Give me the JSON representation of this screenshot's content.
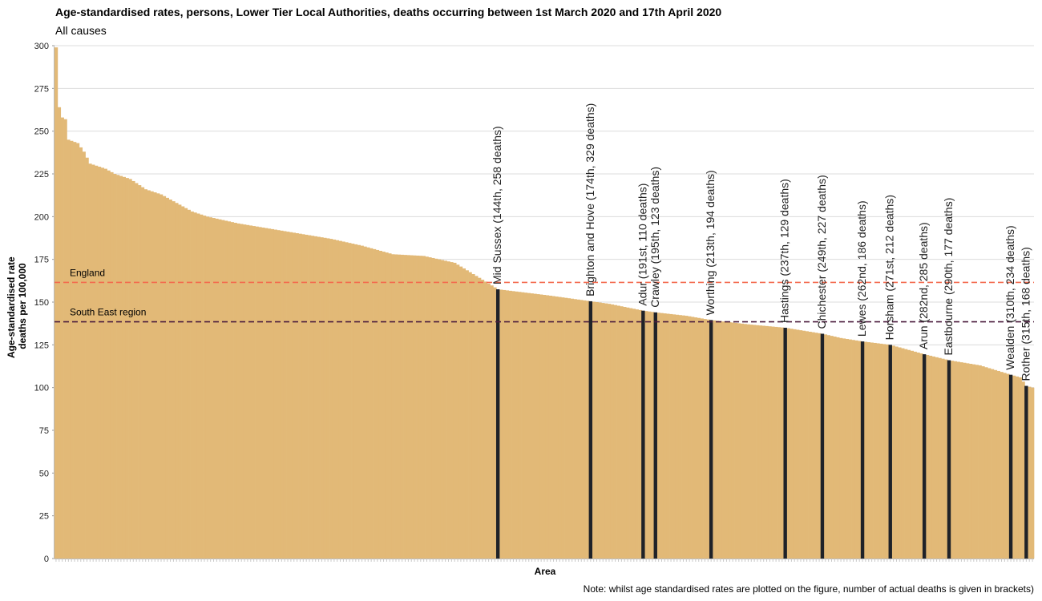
{
  "chart_data": {
    "type": "bar",
    "title": "Age-standardised rates, persons, Lower Tier Local Authorities, deaths occurring between 1st March 2020 and 17th April 2020",
    "subtitle": "All causes",
    "xlabel": "Area",
    "ylabel_lines": [
      "Age-standardised rate",
      "deaths per 100,000"
    ],
    "note": "Note: whilst age standardised rates are plotted on the figure, number of actual deaths is given in brackets)",
    "ylim": [
      0,
      300
    ],
    "yticks": [
      "0",
      "25",
      "50",
      "75",
      "100",
      "125",
      "150",
      "175",
      "200",
      "225",
      "250",
      "275",
      "300"
    ],
    "grid": true,
    "n_areas": 317,
    "bar_color": "#e2b977",
    "highlight_color": "#1f2228",
    "ranked_profile": [
      {
        "rank": 1,
        "value": 299
      },
      {
        "rank": 2,
        "value": 264
      },
      {
        "rank": 3,
        "value": 258
      },
      {
        "rank": 4,
        "value": 257
      },
      {
        "rank": 5,
        "value": 245
      },
      {
        "rank": 8,
        "value": 243
      },
      {
        "rank": 10,
        "value": 238
      },
      {
        "rank": 12,
        "value": 231
      },
      {
        "rank": 17,
        "value": 228
      },
      {
        "rank": 20,
        "value": 225
      },
      {
        "rank": 25,
        "value": 222
      },
      {
        "rank": 30,
        "value": 216
      },
      {
        "rank": 35,
        "value": 213
      },
      {
        "rank": 40,
        "value": 208
      },
      {
        "rank": 45,
        "value": 203
      },
      {
        "rank": 50,
        "value": 200
      },
      {
        "rank": 55,
        "value": 198
      },
      {
        "rank": 60,
        "value": 196
      },
      {
        "rank": 70,
        "value": 193
      },
      {
        "rank": 80,
        "value": 190
      },
      {
        "rank": 90,
        "value": 187
      },
      {
        "rank": 100,
        "value": 183
      },
      {
        "rank": 110,
        "value": 178
      },
      {
        "rank": 120,
        "value": 177
      },
      {
        "rank": 130,
        "value": 173
      },
      {
        "rank": 140,
        "value": 162
      },
      {
        "rank": 144,
        "value": 157.5
      },
      {
        "rank": 160,
        "value": 154
      },
      {
        "rank": 174,
        "value": 150.5
      },
      {
        "rank": 180,
        "value": 149
      },
      {
        "rank": 191,
        "value": 145
      },
      {
        "rank": 195,
        "value": 144
      },
      {
        "rank": 205,
        "value": 142
      },
      {
        "rank": 213,
        "value": 139.5
      },
      {
        "rank": 225,
        "value": 137
      },
      {
        "rank": 237,
        "value": 135
      },
      {
        "rank": 249,
        "value": 131.5
      },
      {
        "rank": 255,
        "value": 129
      },
      {
        "rank": 262,
        "value": 127
      },
      {
        "rank": 271,
        "value": 125
      },
      {
        "rank": 282,
        "value": 119.5
      },
      {
        "rank": 290,
        "value": 116
      },
      {
        "rank": 300,
        "value": 113
      },
      {
        "rank": 310,
        "value": 107.5
      },
      {
        "rank": 313,
        "value": 106
      },
      {
        "rank": 315,
        "value": 101
      },
      {
        "rank": 317,
        "value": 100
      }
    ],
    "highlighted": [
      {
        "name": "Mid Sussex",
        "label": "Mid Sussex (144th, 258 deaths)",
        "rank": 144,
        "value": 157.5
      },
      {
        "name": "Brighton and Hove",
        "label": "Brighton and Hove (174th, 329 deaths)",
        "rank": 174,
        "value": 150.5
      },
      {
        "name": "Adur",
        "label": "Adur (191st, 110 deaths)",
        "rank": 191,
        "value": 145
      },
      {
        "name": "Crawley",
        "label": "Crawley (195th, 123 deaths)",
        "rank": 195,
        "value": 144
      },
      {
        "name": "Worthing",
        "label": "Worthing (213th, 194 deaths)",
        "rank": 213,
        "value": 139.5
      },
      {
        "name": "Hastings",
        "label": "Hastings (237th, 129 deaths)",
        "rank": 237,
        "value": 135
      },
      {
        "name": "Chichester",
        "label": "Chichester (249th, 227 deaths)",
        "rank": 249,
        "value": 131.5
      },
      {
        "name": "Lewes",
        "label": "Lewes (262nd, 186 deaths)",
        "rank": 262,
        "value": 127
      },
      {
        "name": "Horsham",
        "label": "Horsham (271st, 212 deaths)",
        "rank": 271,
        "value": 125
      },
      {
        "name": "Arun",
        "label": "Arun (282nd, 285 deaths)",
        "rank": 282,
        "value": 119.5
      },
      {
        "name": "Eastbourne",
        "label": "Eastbourne (290th, 177 deaths)",
        "rank": 290,
        "value": 116
      },
      {
        "name": "Wealden",
        "label": "Wealden (310th, 234 deaths)",
        "rank": 310,
        "value": 107.5
      },
      {
        "name": "Rother",
        "label": "Rother (315th, 168 deaths)",
        "rank": 315,
        "value": 101
      }
    ],
    "reference_lines": [
      {
        "name": "England",
        "label": "England",
        "value": 161.5,
        "color": "#f46a4e",
        "style": "dashed"
      },
      {
        "name": "South East region",
        "label": "South East region",
        "value": 138.5,
        "color": "#4b1c3e",
        "style": "dashed"
      }
    ]
  }
}
